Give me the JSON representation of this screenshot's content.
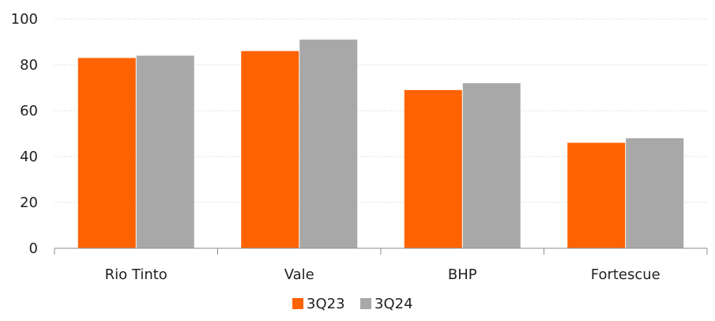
{
  "chart_data": {
    "type": "bar",
    "title": "",
    "xlabel": "",
    "ylabel": "",
    "categories": [
      "Rio Tinto",
      "Vale",
      "BHP",
      "Fortescue"
    ],
    "series": [
      {
        "name": "3Q23",
        "values": [
          83,
          86,
          69,
          46
        ],
        "color": "#ff6200"
      },
      {
        "name": "3Q24",
        "values": [
          84,
          91,
          72,
          48
        ],
        "color": "#a8a8a8"
      }
    ],
    "ylim": [
      0,
      100
    ],
    "yticks": [
      0,
      20,
      40,
      60,
      80,
      100
    ],
    "grid": true,
    "legend": "bottom-center"
  }
}
